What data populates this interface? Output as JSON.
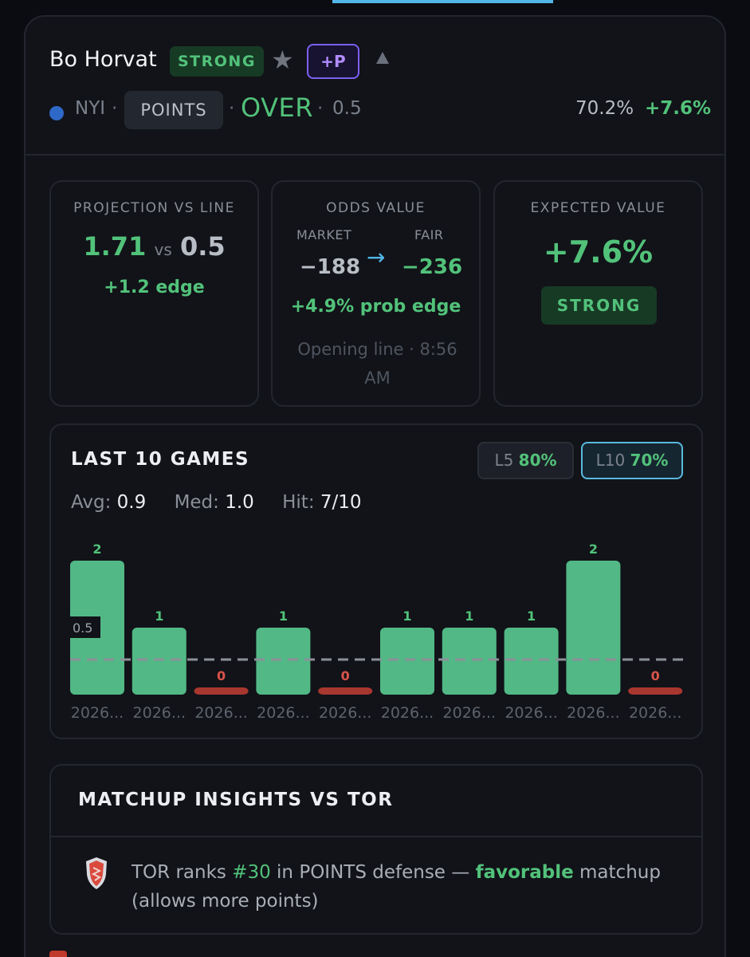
{
  "player": {
    "name": "Bo Horvat",
    "rating_badge": "STRONG",
    "star_icon": "star-icon",
    "plus_label": "+P",
    "team": "NYI",
    "separator": "·",
    "stat_type": "POINTS",
    "direction": "OVER",
    "line": "0.5",
    "probability": "70.2%",
    "edge": "+7.6%",
    "team_color": "#2f69c8"
  },
  "projection": {
    "title": "PROJECTION VS LINE",
    "projected": "1.71",
    "vs": "vs",
    "line": "0.5",
    "edge": "+1.2 edge"
  },
  "odds": {
    "title": "ODDS VALUE",
    "market_label": "MARKET",
    "fair_label": "FAIR",
    "market": "−188",
    "fair": "−236",
    "prob_edge": "+4.9% prob edge",
    "opening": "Opening line · 8:56 AM"
  },
  "expected_value": {
    "title": "EXPECTED VALUE",
    "value": "+7.6%",
    "badge": "STRONG"
  },
  "last_games": {
    "title": "LAST 10 GAMES",
    "l5_label": "L5",
    "l5_value": "80%",
    "l10_label": "L10",
    "l10_value": "70%",
    "avg_label": "Avg:",
    "avg": "0.9",
    "med_label": "Med:",
    "med": "1.0",
    "hit_label": "Hit:",
    "hit": "7/10"
  },
  "chart_data": {
    "type": "bar",
    "categories": [
      "2026...",
      "2026...",
      "2026...",
      "2026...",
      "2026...",
      "2026...",
      "2026...",
      "2026...",
      "2026...",
      "2026..."
    ],
    "values": [
      2,
      1,
      0,
      1,
      0,
      1,
      1,
      1,
      2,
      0
    ],
    "line": 0.5,
    "line_label": "0.5",
    "ylim": [
      0,
      2
    ],
    "colors": {
      "hit": "#52b886",
      "miss": "#a8372f"
    }
  },
  "matchup": {
    "title": "MATCHUP INSIGHTS VS TOR",
    "shield_icon": "shield-icon",
    "text_a": "TOR ranks ",
    "rank": "#30",
    "text_b": " in POINTS defense — ",
    "favorable": "favorable",
    "text_c": " matchup (allows more points)"
  }
}
